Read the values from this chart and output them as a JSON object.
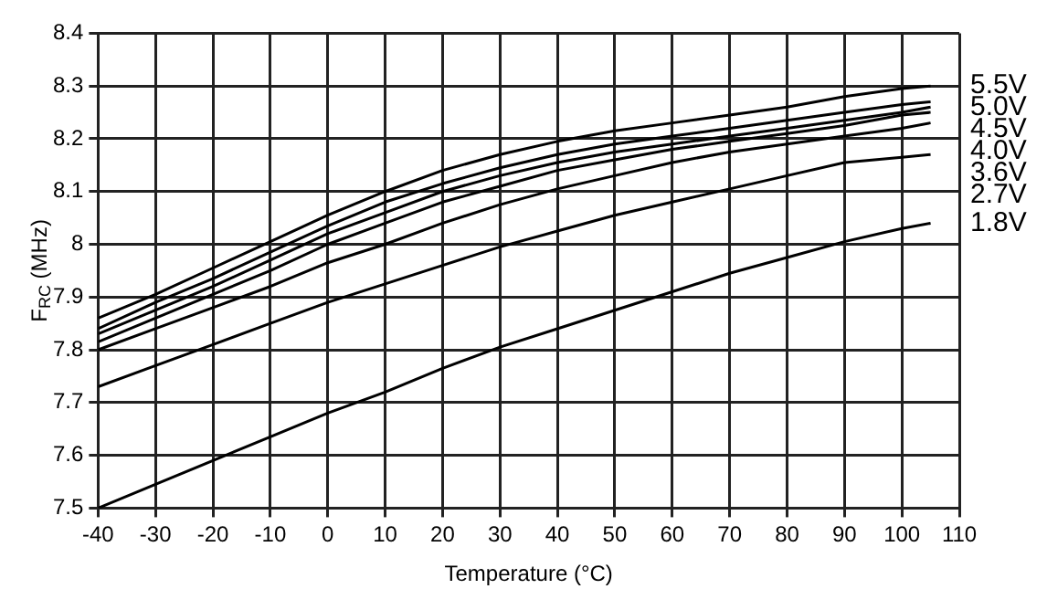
{
  "chart_data": {
    "type": "line",
    "xlabel": "Temperature (°C)",
    "ylabel": "F$_{RC}$ (MHz)",
    "x": [
      -40,
      -30,
      -20,
      -10,
      0,
      10,
      20,
      30,
      40,
      50,
      60,
      70,
      80,
      90,
      100,
      105
    ],
    "series": [
      {
        "name": "5.5V",
        "color": "#000000",
        "values": [
          7.86,
          7.905,
          7.955,
          8.005,
          8.055,
          8.1,
          8.14,
          8.17,
          8.195,
          8.215,
          8.23,
          8.245,
          8.26,
          8.28,
          8.295,
          8.3
        ]
      },
      {
        "name": "5.0V",
        "color": "#000000",
        "values": [
          7.84,
          7.89,
          7.935,
          7.985,
          8.035,
          8.08,
          8.115,
          8.145,
          8.17,
          8.19,
          8.205,
          8.22,
          8.235,
          8.25,
          8.265,
          8.27
        ]
      },
      {
        "name": "4.5V",
        "color": "#000000",
        "values": [
          7.83,
          7.875,
          7.92,
          7.97,
          8.02,
          8.06,
          8.1,
          8.13,
          8.155,
          8.175,
          8.19,
          8.205,
          8.22,
          8.235,
          8.25,
          8.26
        ]
      },
      {
        "name": "4.0V",
        "color": "#000000",
        "values": [
          7.815,
          7.86,
          7.905,
          7.95,
          8,
          8.04,
          8.08,
          8.11,
          8.14,
          8.16,
          8.18,
          8.195,
          8.21,
          8.225,
          8.245,
          8.25
        ]
      },
      {
        "name": "3.6V",
        "color": "#000000",
        "values": [
          7.8,
          7.84,
          7.88,
          7.92,
          7.965,
          8,
          8.04,
          8.075,
          8.105,
          8.13,
          8.155,
          8.175,
          8.19,
          8.205,
          8.22,
          8.23
        ]
      },
      {
        "name": "2.7V",
        "color": "#000000",
        "values": [
          7.73,
          7.77,
          7.81,
          7.85,
          7.89,
          7.925,
          7.96,
          7.995,
          8.025,
          8.055,
          8.08,
          8.105,
          8.13,
          8.155,
          8.165,
          8.17
        ]
      },
      {
        "name": "1.8V",
        "color": "#000000",
        "values": [
          7.5,
          7.545,
          7.59,
          7.635,
          7.68,
          7.72,
          7.765,
          7.805,
          7.84,
          7.875,
          7.91,
          7.945,
          7.975,
          8.005,
          8.03,
          8.04
        ]
      }
    ],
    "xlim": [
      -40,
      110
    ],
    "xticks": [
      -40,
      -30,
      -20,
      -10,
      0,
      10,
      20,
      30,
      40,
      50,
      60,
      70,
      80,
      90,
      100,
      110
    ],
    "ylim": [
      7.5,
      8.4
    ],
    "yticks": [
      7.5,
      7.6,
      7.7,
      7.8,
      7.9,
      8,
      8.1,
      8.2,
      8.3,
      8.4
    ],
    "grid": true,
    "legend": false,
    "marker": "none",
    "line_style": "solid"
  }
}
